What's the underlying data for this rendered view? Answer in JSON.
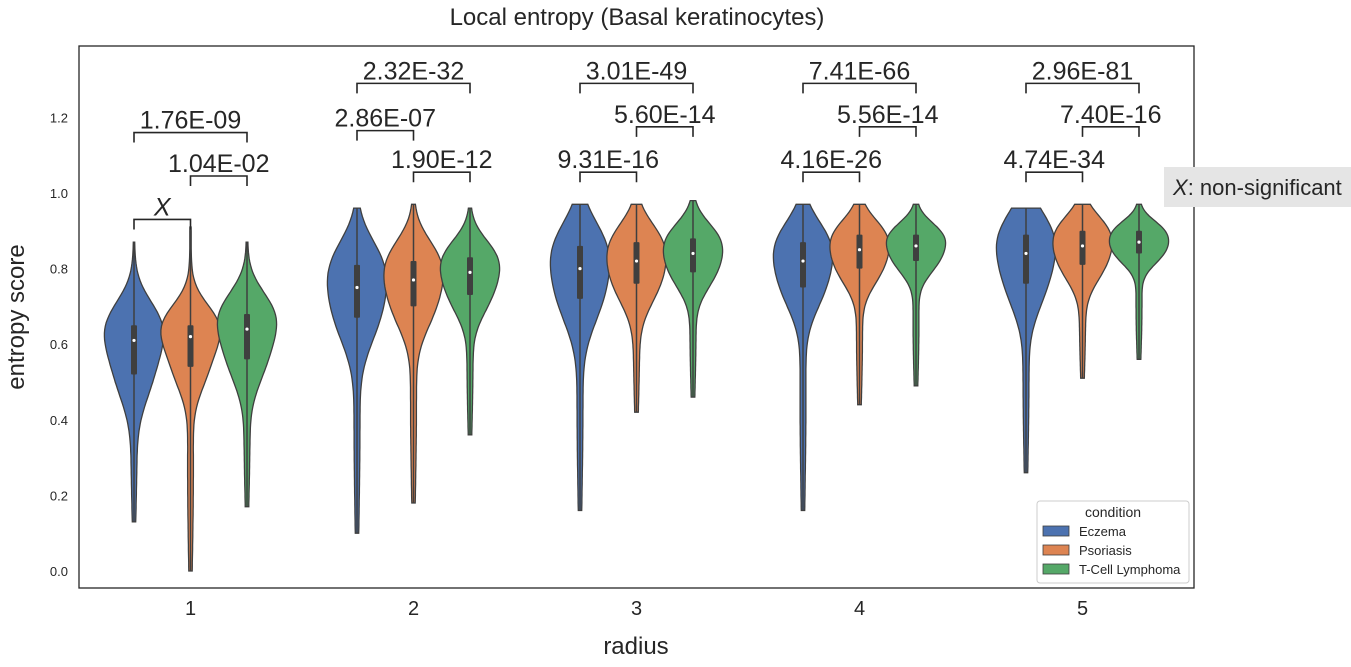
{
  "chart_data": {
    "type": "violin",
    "title": "Local entropy (Basal keratinocytes)",
    "xlabel": "radius",
    "ylabel": "entropy score",
    "categories": [
      "1",
      "2",
      "3",
      "4",
      "5"
    ],
    "yticks": [
      "0.0",
      "0.2",
      "0.4",
      "0.6",
      "0.8",
      "1.0",
      "1.2"
    ],
    "ylim": [
      -0.05,
      1.4
    ],
    "grid": false,
    "legend": {
      "title": "condition",
      "placement": "bottom-right"
    },
    "series": [
      {
        "name": "Eczema",
        "color": "#4c72b0",
        "stats": [
          {
            "min": 0.13,
            "q1": 0.52,
            "median": 0.61,
            "q3": 0.65,
            "max": 0.87
          },
          {
            "min": 0.1,
            "q1": 0.67,
            "median": 0.75,
            "q3": 0.81,
            "max": 0.96
          },
          {
            "min": 0.16,
            "q1": 0.72,
            "median": 0.8,
            "q3": 0.86,
            "max": 0.97
          },
          {
            "min": 0.16,
            "q1": 0.75,
            "median": 0.82,
            "q3": 0.87,
            "max": 0.97
          },
          {
            "min": 0.26,
            "q1": 0.76,
            "median": 0.84,
            "q3": 0.89,
            "max": 0.96
          }
        ]
      },
      {
        "name": "Psoriasis",
        "color": "#dd8452",
        "stats": [
          {
            "min": 0.0,
            "q1": 0.54,
            "median": 0.62,
            "q3": 0.65,
            "max": 0.91
          },
          {
            "min": 0.18,
            "q1": 0.7,
            "median": 0.77,
            "q3": 0.82,
            "max": 0.97
          },
          {
            "min": 0.42,
            "q1": 0.76,
            "median": 0.82,
            "q3": 0.87,
            "max": 0.97
          },
          {
            "min": 0.44,
            "q1": 0.8,
            "median": 0.85,
            "q3": 0.89,
            "max": 0.97
          },
          {
            "min": 0.51,
            "q1": 0.81,
            "median": 0.86,
            "q3": 0.9,
            "max": 0.97
          }
        ]
      },
      {
        "name": "T-Cell Lymphoma",
        "color": "#55a868",
        "stats": [
          {
            "min": 0.17,
            "q1": 0.56,
            "median": 0.64,
            "q3": 0.68,
            "max": 0.87
          },
          {
            "min": 0.36,
            "q1": 0.73,
            "median": 0.79,
            "q3": 0.83,
            "max": 0.96
          },
          {
            "min": 0.46,
            "q1": 0.79,
            "median": 0.84,
            "q3": 0.88,
            "max": 0.98
          },
          {
            "min": 0.49,
            "q1": 0.82,
            "median": 0.86,
            "q3": 0.89,
            "max": 0.97
          },
          {
            "min": 0.56,
            "q1": 0.84,
            "median": 0.87,
            "q3": 0.9,
            "max": 0.97
          }
        ]
      }
    ],
    "comparisons": [
      {
        "category": 0,
        "from": 0,
        "to": 1,
        "label": "X",
        "y": 0.93
      },
      {
        "category": 0,
        "from": 1,
        "to": 2,
        "label": "1.04E-02",
        "y": 1.045
      },
      {
        "category": 0,
        "from": 0,
        "to": 2,
        "label": "1.76E-09",
        "y": 1.16
      },
      {
        "category": 1,
        "from": 1,
        "to": 2,
        "label": "1.90E-12",
        "y": 1.055
      },
      {
        "category": 1,
        "from": 0,
        "to": 1,
        "label": "2.86E-07",
        "y": 1.165
      },
      {
        "category": 1,
        "from": 0,
        "to": 2,
        "label": "2.32E-32",
        "y": 1.29
      },
      {
        "category": 2,
        "from": 0,
        "to": 1,
        "label": "9.31E-16",
        "y": 1.055
      },
      {
        "category": 2,
        "from": 1,
        "to": 2,
        "label": "5.60E-14",
        "y": 1.175
      },
      {
        "category": 2,
        "from": 0,
        "to": 2,
        "label": "3.01E-49",
        "y": 1.29
      },
      {
        "category": 3,
        "from": 0,
        "to": 1,
        "label": "4.16E-26",
        "y": 1.055
      },
      {
        "category": 3,
        "from": 1,
        "to": 2,
        "label": "5.56E-14",
        "y": 1.175
      },
      {
        "category": 3,
        "from": 0,
        "to": 2,
        "label": "7.41E-66",
        "y": 1.29
      },
      {
        "category": 4,
        "from": 0,
        "to": 1,
        "label": "4.74E-34",
        "y": 1.055
      },
      {
        "category": 4,
        "from": 1,
        "to": 2,
        "label": "7.40E-16",
        "y": 1.175
      },
      {
        "category": 4,
        "from": 0,
        "to": 2,
        "label": "2.96E-81",
        "y": 1.29
      }
    ],
    "note": {
      "symbol": "X",
      "text": ": non-significant"
    }
  }
}
